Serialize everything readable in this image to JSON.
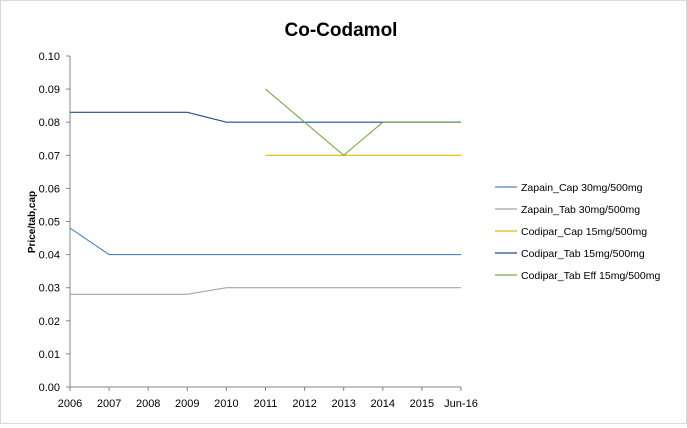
{
  "chart_data": {
    "type": "line",
    "title": "Co-Codamol",
    "xlabel": "",
    "ylabel": "Price/tab,cap",
    "categories": [
      "2006",
      "2007",
      "2008",
      "2009",
      "2010",
      "2011",
      "2012",
      "2013",
      "2014",
      "2015",
      "Jun-16"
    ],
    "ylim": [
      0,
      0.1
    ],
    "yticks": [
      "0.00",
      "0.01",
      "0.02",
      "0.03",
      "0.04",
      "0.05",
      "0.06",
      "0.07",
      "0.08",
      "0.09",
      "0.10"
    ],
    "grid": false,
    "legend_position": "right",
    "series": [
      {
        "name": "Zapain_Cap 30mg/500mg",
        "color": "#4f81bd",
        "values": [
          0.048,
          0.04,
          0.04,
          0.04,
          0.04,
          0.04,
          0.04,
          0.04,
          0.04,
          0.04,
          0.04
        ]
      },
      {
        "name": "Zapain_Tab 30mg/500mg",
        "color": "#a5a5a5",
        "values": [
          0.028,
          0.028,
          0.028,
          0.028,
          0.03,
          0.03,
          0.03,
          0.03,
          0.03,
          0.03,
          0.03
        ]
      },
      {
        "name": "Codipar_Cap 15mg/500mg",
        "color": "#e6b800",
        "values": [
          null,
          null,
          null,
          null,
          null,
          0.07,
          0.07,
          0.07,
          0.07,
          0.07,
          0.07
        ]
      },
      {
        "name": "Codipar_Tab 15mg/500mg",
        "color": "#1f4e96",
        "values": [
          0.083,
          0.083,
          0.083,
          0.083,
          0.08,
          0.08,
          0.08,
          0.08,
          0.08,
          0.08,
          0.08
        ]
      },
      {
        "name": "Codipar_Tab Eff 15mg/500mg",
        "color": "#70ad47",
        "values": [
          null,
          null,
          null,
          null,
          null,
          0.09,
          null,
          0.07,
          0.08,
          0.08,
          0.08
        ]
      }
    ]
  }
}
